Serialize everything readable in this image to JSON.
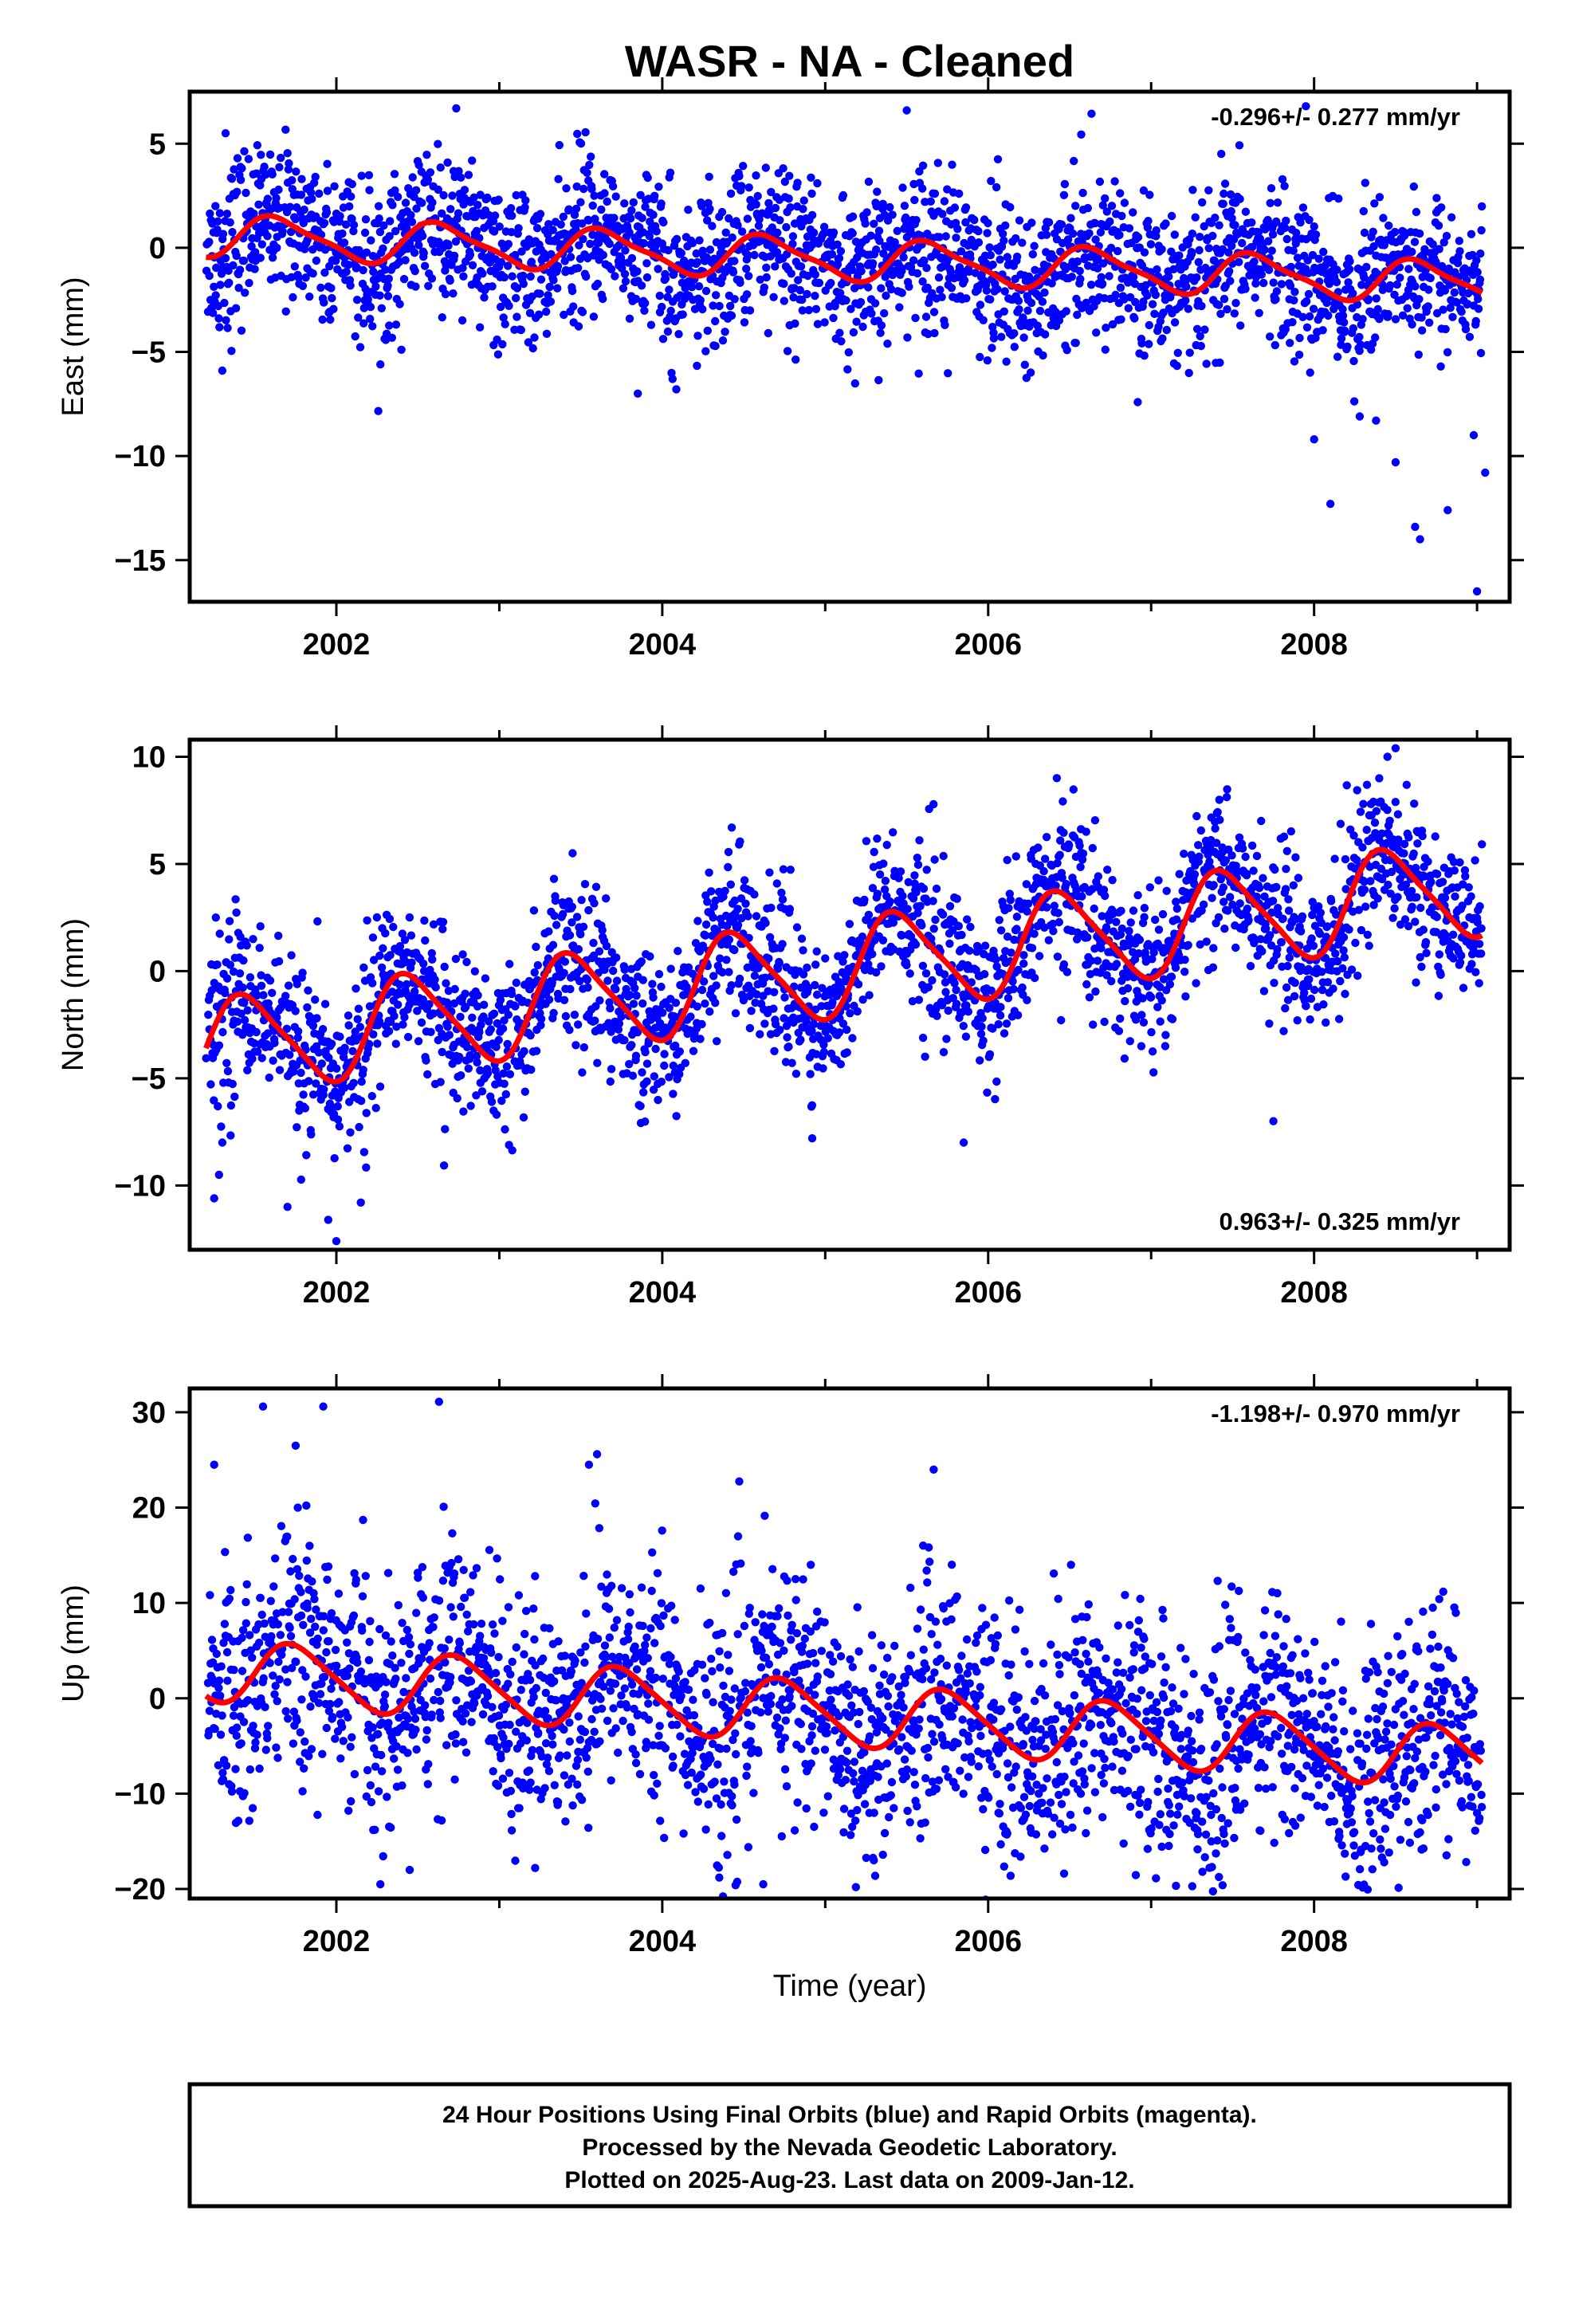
{
  "title": "WASR  - NA - Cleaned",
  "xlabel": "Time (year)",
  "footer": [
    "24 Hour Positions Using Final Orbits (blue) and Rapid Orbits (magenta).",
    "Processed by the Nevada Geodetic Laboratory.",
    "Plotted on 2025-Aug-23. Last data on 2009-Jan-12."
  ],
  "colors": {
    "points": "#0000ff",
    "model": "#ff0000",
    "frame": "#000000"
  },
  "chart_data": [
    {
      "type": "scatter",
      "ylabel": "East (mm)",
      "rate_label": "-0.296+/- 0.277 mm/yr",
      "rate_position": "top-right",
      "xlim": [
        2001.1,
        2009.2
      ],
      "ylim": [
        -17,
        7.5
      ],
      "xticks": [
        2002,
        2004,
        2006,
        2008
      ],
      "yticks": [
        5,
        0,
        -5,
        -10,
        -15
      ],
      "ytick_labels": [
        "5",
        "0",
        "−5",
        "−10",
        "−15"
      ],
      "grid": false,
      "span": [
        2001.2,
        2009.03
      ],
      "model": {
        "offset": 0.6,
        "rate": -0.296,
        "amp_annual": 0.95,
        "phase_annual": 2001.4,
        "amp_semi": 0.25
      },
      "noise": 1.7,
      "outliers": [
        [
          2001.3,
          -5.9
        ],
        [
          2003.85,
          -7.0
        ],
        [
          2005.5,
          6.6
        ],
        [
          2008.0,
          -9.2
        ],
        [
          2008.1,
          -12.3
        ],
        [
          2008.28,
          -8.1
        ],
        [
          2008.38,
          -8.3
        ],
        [
          2008.5,
          -10.3
        ],
        [
          2008.62,
          -13.4
        ],
        [
          2008.65,
          -14.0
        ],
        [
          2008.82,
          -12.6
        ],
        [
          2009.0,
          -16.5
        ],
        [
          2009.05,
          -10.8
        ],
        [
          2008.98,
          -9.0
        ],
        [
          2007.95,
          6.8
        ],
        [
          2001.32,
          5.5
        ],
        [
          2002.27,
          -5.6
        ],
        [
          2004.65,
          -4.1
        ]
      ]
    },
    {
      "type": "scatter",
      "ylabel": "North (mm)",
      "rate_label": "0.963+/- 0.325 mm/yr",
      "rate_position": "bottom-right",
      "xlim": [
        2001.1,
        2009.2
      ],
      "ylim": [
        -13,
        10.8
      ],
      "xticks": [
        2002,
        2004,
        2006,
        2008
      ],
      "yticks": [
        10,
        5,
        0,
        -5,
        -10
      ],
      "ytick_labels": [
        "10",
        "5",
        "0",
        "−5",
        "−10"
      ],
      "grid": false,
      "span": [
        2001.2,
        2009.03
      ],
      "model": {
        "offset": -3.6,
        "rate": 0.963,
        "amp_annual": 2.2,
        "phase_annual": 2001.2,
        "amp_semi": 0.4
      },
      "noise": 1.7,
      "outliers": [
        [
          2001.25,
          -10.6
        ],
        [
          2001.28,
          -9.5
        ],
        [
          2001.3,
          -8.0
        ],
        [
          2001.7,
          -11.0
        ],
        [
          2002.0,
          -12.6
        ],
        [
          2001.95,
          -11.6
        ],
        [
          2005.85,
          -8.0
        ],
        [
          2007.75,
          -7.0
        ],
        [
          2008.4,
          9.0
        ],
        [
          2008.45,
          10.0
        ],
        [
          2008.5,
          10.4
        ],
        [
          2002.15,
          -10.8
        ],
        [
          2003.45,
          5.5
        ],
        [
          2004.92,
          -7.8
        ]
      ]
    },
    {
      "type": "scatter",
      "ylabel": "Up (mm)",
      "rate_label": "-1.198+/- 0.970 mm/yr",
      "rate_position": "top-right",
      "xlim": [
        2001.1,
        2009.2
      ],
      "ylim": [
        -21,
        32.5
      ],
      "xticks": [
        2002,
        2004,
        2006,
        2008
      ],
      "yticks": [
        30,
        20,
        10,
        0,
        -10,
        -20
      ],
      "ytick_labels": [
        "30",
        "20",
        "10",
        "0",
        "−10",
        "−20"
      ],
      "grid": false,
      "span": [
        2001.2,
        2009.03
      ],
      "model": {
        "offset": 3.0,
        "rate": -1.198,
        "amp_annual": 3.2,
        "phase_annual": 2001.5,
        "amp_semi": 0.5
      },
      "noise": 5.6,
      "outliers": [
        [
          2001.25,
          24.5
        ],
        [
          2001.55,
          30.6
        ],
        [
          2001.75,
          26.5
        ],
        [
          2001.92,
          30.6
        ],
        [
          2002.63,
          31.1
        ],
        [
          2003.55,
          24.5
        ],
        [
          2003.6,
          25.6
        ],
        [
          2002.27,
          -19.5
        ],
        [
          2004.35,
          -18.8
        ],
        [
          2004.45,
          -19.6
        ],
        [
          2004.62,
          -19.5
        ],
        [
          2008.43,
          -17.2
        ],
        [
          2003.22,
          -17.8
        ],
        [
          2002.45,
          -18.0
        ]
      ]
    }
  ]
}
